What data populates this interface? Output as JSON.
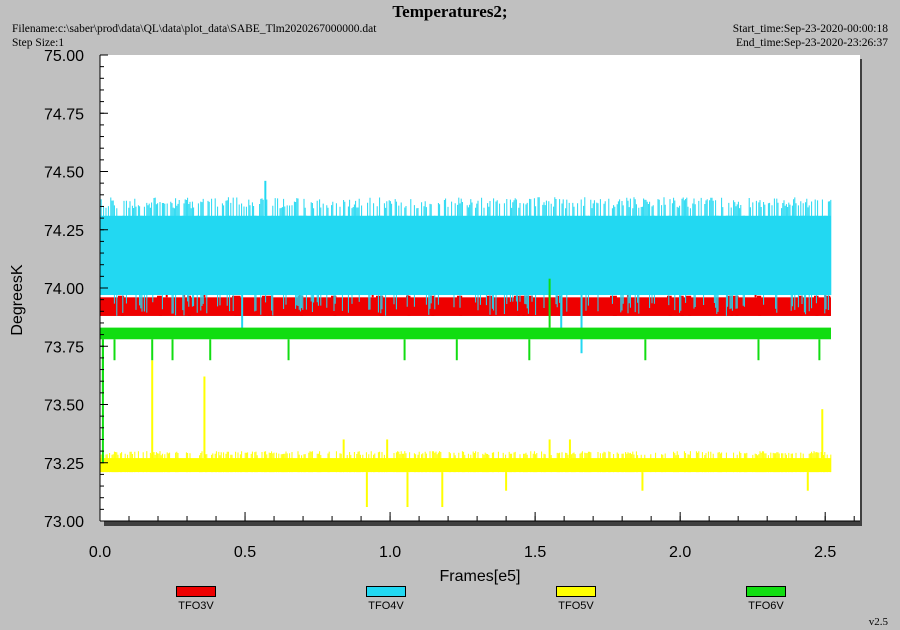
{
  "header": {
    "title": "Temperatures2;",
    "filename": "Filename:c:\\saber\\prod\\data\\QL\\data\\plot_data\\SABE_Tlm2020267000000.dat",
    "step_size": "Step Size:1",
    "start_time": "Start_time:Sep-23-2020-00:00:18",
    "end_time": "End_time:Sep-23-2020-23:26:37"
  },
  "footer": {
    "version": "v2.5"
  },
  "colors": {
    "background": "#c0c0c0",
    "plot_area": "#ffffff",
    "TFO3V": "#ee0000",
    "TFO4V": "#22d8f2",
    "TFO5V": "#ffff00",
    "TFO6V": "#11dd11"
  },
  "chart_data": {
    "type": "line",
    "xlabel": "Frames[e5]",
    "ylabel": "DegreesK",
    "xlim": [
      0.0,
      2.62
    ],
    "ylim": [
      73.0,
      75.0
    ],
    "x_ticks": [
      "0.0",
      "0.5",
      "1.0",
      "1.5",
      "2.0",
      "2.5"
    ],
    "x_tick_values": [
      0.0,
      0.5,
      1.0,
      1.5,
      2.0,
      2.5
    ],
    "y_ticks": [
      "73.00",
      "73.25",
      "73.50",
      "73.75",
      "74.00",
      "74.25",
      "74.50",
      "74.75",
      "75.00"
    ],
    "y_tick_values": [
      73.0,
      73.25,
      73.5,
      73.75,
      74.0,
      74.25,
      74.5,
      74.75,
      75.0
    ],
    "grid": false,
    "legend_position": "bottom",
    "series": [
      {
        "name": "TFO3V",
        "color": "#ee0000",
        "x_range": [
          0.0,
          2.52
        ],
        "typical_range": [
          73.88,
          73.96
        ],
        "spikes": [
          [
            0.23,
            74.03
          ],
          [
            0.29,
            74.03
          ],
          [
            0.36,
            74.03
          ],
          [
            0.69,
            74.03
          ],
          [
            0.94,
            74.03
          ],
          [
            1.06,
            74.03
          ],
          [
            1.55,
            74.03
          ],
          [
            1.82,
            74.03
          ],
          [
            2.26,
            74.03
          ],
          [
            2.5,
            74.03
          ]
        ]
      },
      {
        "name": "TFO4V",
        "color": "#22d8f2",
        "x_range": [
          0.0,
          2.52
        ],
        "typical_range": [
          73.97,
          74.31
        ],
        "max_envelope": 74.39,
        "min_envelope": 73.88,
        "spikes": [
          [
            0.57,
            74.46
          ],
          [
            1.66,
            73.72
          ],
          [
            0.49,
            73.79
          ],
          [
            1.59,
            73.79
          ]
        ]
      },
      {
        "name": "TFO5V",
        "color": "#ffff00",
        "x_range": [
          0.0,
          2.52
        ],
        "typical_range": [
          73.21,
          73.27
        ],
        "max_envelope": 73.3,
        "spikes": [
          [
            0.18,
            73.69
          ],
          [
            0.36,
            73.62
          ],
          [
            0.84,
            73.35
          ],
          [
            0.99,
            73.35
          ],
          [
            1.55,
            73.35
          ],
          [
            1.62,
            73.35
          ],
          [
            2.49,
            73.48
          ],
          [
            0.92,
            73.06
          ],
          [
            1.06,
            73.06
          ],
          [
            1.18,
            73.06
          ],
          [
            1.4,
            73.13
          ],
          [
            1.87,
            73.13
          ],
          [
            2.44,
            73.13
          ]
        ]
      },
      {
        "name": "TFO6V",
        "color": "#11dd11",
        "x_range": [
          0.0,
          2.52
        ],
        "typical_range": [
          73.78,
          73.83
        ],
        "spikes": [
          [
            1.55,
            74.04
          ],
          [
            0.01,
            73.55
          ],
          [
            0.01,
            73.25
          ],
          [
            0.05,
            73.69
          ],
          [
            0.18,
            73.69
          ],
          [
            0.25,
            73.69
          ],
          [
            0.38,
            73.69
          ],
          [
            0.65,
            73.69
          ],
          [
            1.05,
            73.69
          ],
          [
            1.23,
            73.69
          ],
          [
            1.48,
            73.69
          ],
          [
            1.88,
            73.69
          ],
          [
            2.27,
            73.69
          ],
          [
            2.48,
            73.69
          ]
        ]
      }
    ]
  }
}
